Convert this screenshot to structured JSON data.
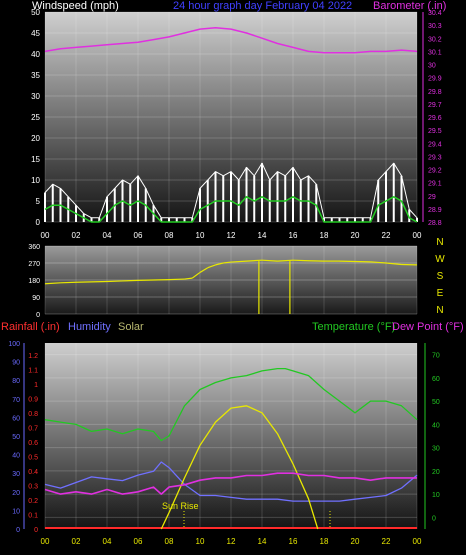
{
  "header": {
    "windspeed_title": "Windspeed (mph)",
    "graph_title": "24 hour graph day   February 04 2022",
    "barometer_title": "Barometer (.in)"
  },
  "colors": {
    "background": "#000000",
    "panel_top": "#c8c8c8",
    "panel_bottom": "#1a1a1a",
    "barometer": "#e030e0",
    "wind_peak": "#ffffff",
    "wind_avg": "#22cc22",
    "direction": "#e8e800",
    "rain": "#ff2a2a",
    "humidity": "#7070ff",
    "solar": "#e8e800",
    "temperature": "#22c822",
    "dewpoint": "#e030e0",
    "title_blue": "#4040ff",
    "left_axis": "#6a6aff",
    "right_axis": "#22c822"
  },
  "x_ticks": [
    "00",
    "02",
    "04",
    "06",
    "08",
    "10",
    "12",
    "14",
    "16",
    "18",
    "20",
    "22",
    "00"
  ],
  "direction_labels": [
    "N",
    "W",
    "S",
    "E",
    "N"
  ],
  "bottom_legend": {
    "rainfall": "Rainfall (.in)",
    "humidity": "Humidity",
    "solar": "Solar",
    "temperature": "Temperature (°F)",
    "dewpoint": "Dew Point (°F)"
  },
  "annotation": {
    "sunrise": "Sun Rise"
  },
  "chart_data": [
    {
      "type": "line",
      "title": "24 hour graph day   February 04 2022",
      "x_unit": "hour",
      "xlim": [
        0,
        24
      ],
      "x_tick_labels": [
        "00",
        "02",
        "04",
        "06",
        "08",
        "10",
        "12",
        "14",
        "16",
        "18",
        "20",
        "22",
        "00"
      ],
      "ylabel": "Windspeed (mph)",
      "ylim": [
        0,
        50
      ],
      "yticks": [
        0,
        5,
        10,
        15,
        20,
        25,
        30,
        35,
        40,
        45,
        50
      ],
      "y2label": "Barometer (.in)",
      "y2lim": [
        28.8,
        30.4
      ],
      "y2ticks": [
        "28.8",
        "28.9",
        "29",
        "29.1",
        "29.2",
        "29.3",
        "29.4",
        "29.5",
        "29.6",
        "29.7",
        "29.8",
        "29.9",
        "30",
        "30.1",
        "30.2",
        "30.3",
        "30.4"
      ],
      "grid": true,
      "series": [
        {
          "name": "Barometer (.in)",
          "axis": "y2",
          "x": [
            0,
            1,
            2,
            3,
            4,
            5,
            6,
            7,
            8,
            9,
            10,
            11,
            12,
            13,
            14,
            15,
            16,
            17,
            18,
            19,
            20,
            21,
            22,
            23,
            24
          ],
          "values": [
            30.1,
            30.12,
            30.13,
            30.14,
            30.15,
            30.16,
            30.17,
            30.19,
            30.21,
            30.24,
            30.27,
            30.28,
            30.27,
            30.24,
            30.2,
            30.16,
            30.13,
            30.1,
            30.09,
            30.09,
            30.09,
            30.1,
            30.1,
            30.11,
            30.1
          ]
        },
        {
          "name": "wind peak",
          "axis": "y",
          "x": [
            0,
            0.5,
            1,
            1.5,
            2,
            2.5,
            3,
            3.5,
            4,
            4.5,
            5,
            5.5,
            6,
            6.5,
            7,
            7.5,
            8,
            8.5,
            9,
            9.5,
            10,
            10.5,
            11,
            11.5,
            12,
            12.5,
            13,
            13.5,
            14,
            14.5,
            15,
            15.5,
            16,
            16.5,
            17,
            17.5,
            18,
            18.5,
            19,
            19.5,
            20,
            20.5,
            21,
            21.5,
            22,
            22.5,
            23,
            23.5,
            24
          ],
          "values": [
            7,
            9,
            8,
            6,
            4,
            2,
            1,
            1,
            6,
            8,
            10,
            9,
            11,
            8,
            4,
            1,
            1,
            1,
            1,
            1,
            8,
            10,
            12,
            11,
            12,
            10,
            13,
            11,
            14,
            10,
            12,
            11,
            13,
            10,
            11,
            9,
            1,
            1,
            1,
            1,
            1,
            1,
            1,
            10,
            12,
            14,
            11,
            3,
            1
          ]
        },
        {
          "name": "wind average",
          "axis": "y",
          "x": [
            0,
            0.5,
            1,
            1.5,
            2,
            2.5,
            3,
            3.5,
            4,
            4.5,
            5,
            5.5,
            6,
            6.5,
            7,
            7.5,
            8,
            8.5,
            9,
            9.5,
            10,
            10.5,
            11,
            11.5,
            12,
            12.5,
            13,
            13.5,
            14,
            14.5,
            15,
            15.5,
            16,
            16.5,
            17,
            17.5,
            18,
            18.5,
            19,
            19.5,
            20,
            20.5,
            21,
            21.5,
            22,
            22.5,
            23,
            23.5,
            24
          ],
          "values": [
            3,
            4,
            4,
            3,
            2,
            1,
            0,
            0,
            2,
            4,
            5,
            4,
            5,
            4,
            2,
            0,
            0,
            0,
            0,
            0,
            3,
            4,
            5,
            5,
            5,
            4,
            6,
            5,
            6,
            5,
            5,
            5,
            6,
            5,
            5,
            4,
            0,
            0,
            0,
            0,
            0,
            0,
            0,
            4,
            5,
            6,
            5,
            1,
            0
          ]
        }
      ]
    },
    {
      "type": "line",
      "ylabel": "Wind direction",
      "ylim": [
        0,
        360
      ],
      "yticks": [
        0,
        90,
        180,
        270,
        360
      ],
      "xlim": [
        0,
        24
      ],
      "grid": true,
      "series": [
        {
          "name": "wind direction",
          "x": [
            0,
            1,
            2,
            3,
            4,
            5,
            6,
            7,
            8,
            9,
            9.5,
            10,
            10.5,
            11,
            11.5,
            12,
            13,
            13.8,
            14,
            15,
            15.8,
            16,
            17,
            18,
            19,
            20,
            21,
            22,
            23,
            24
          ],
          "values": [
            160,
            165,
            168,
            170,
            172,
            175,
            178,
            180,
            182,
            185,
            190,
            220,
            245,
            260,
            270,
            275,
            280,
            0,
            285,
            280,
            0,
            285,
            282,
            280,
            280,
            278,
            276,
            270,
            262,
            260
          ]
        }
      ]
    },
    {
      "type": "line",
      "xlim": [
        0,
        24
      ],
      "x_tick_labels": [
        "00",
        "02",
        "04",
        "06",
        "08",
        "10",
        "12",
        "14",
        "16",
        "18",
        "20",
        "22",
        "00"
      ],
      "ylabel": "Rainfall (.in)",
      "ylim": [
        0,
        1.2
      ],
      "yticks": [
        "0",
        "0.1",
        "0.2",
        "0.3",
        "0.4",
        "0.5",
        "0.6",
        "0.7",
        "0.8",
        "0.9",
        "1",
        "1.1",
        "1.2"
      ],
      "y_humidity_ticks": [
        0,
        10,
        20,
        30,
        40,
        50,
        60,
        70,
        80,
        90,
        100
      ],
      "y2label": "Temperature (°F)",
      "y2lim": [
        -5,
        75
      ],
      "y2ticks": [
        0,
        10,
        20,
        30,
        40,
        50,
        60,
        70
      ],
      "grid": true,
      "series": [
        {
          "name": "Rainfall (.in)",
          "axis": "rain",
          "x": [
            0,
            24
          ],
          "values": [
            0,
            0
          ]
        },
        {
          "name": "Humidity",
          "axis": "humidity",
          "x": [
            0,
            1,
            2,
            3,
            4,
            5,
            6,
            7,
            7.5,
            8,
            9,
            10,
            11,
            12,
            13,
            14,
            15,
            16,
            17,
            18,
            19,
            20,
            21,
            22,
            23,
            24
          ],
          "values": [
            24,
            22,
            25,
            28,
            27,
            26,
            29,
            31,
            36,
            33,
            24,
            18,
            18,
            17,
            16,
            16,
            16,
            15,
            15,
            15,
            15,
            16,
            17,
            18,
            22,
            29
          ]
        },
        {
          "name": "Solar",
          "axis": "y2",
          "x": [
            7.5,
            8,
            9,
            10,
            11,
            12,
            13,
            14,
            15,
            16,
            17,
            17.6
          ],
          "values": [
            -5,
            2,
            17,
            31,
            41,
            47,
            48,
            45,
            36,
            23,
            8,
            -5
          ]
        },
        {
          "name": "Temperature (°F)",
          "axis": "y2",
          "x": [
            0,
            1,
            2,
            3,
            4,
            5,
            6,
            7,
            7.5,
            8,
            9,
            10,
            11,
            12,
            13,
            14,
            15,
            15.5,
            16,
            17,
            18,
            19,
            20,
            21,
            22,
            23,
            24
          ],
          "values": [
            42,
            41,
            40,
            37,
            38,
            36,
            38,
            37,
            33,
            35,
            48,
            55,
            58,
            60,
            61,
            63,
            64,
            64,
            63,
            61,
            55,
            50,
            45,
            50,
            50,
            48,
            42
          ]
        },
        {
          "name": "Dew Point (°F)",
          "axis": "y2",
          "x": [
            0,
            1,
            2,
            3,
            4,
            5,
            6,
            7,
            7.5,
            8,
            9,
            10,
            11,
            12,
            13,
            14,
            15,
            16,
            17,
            18,
            19,
            20,
            21,
            22,
            23,
            24
          ],
          "values": [
            12,
            10,
            11,
            10,
            12,
            10,
            11,
            13,
            10,
            13,
            14,
            16,
            17,
            17,
            18,
            18,
            19,
            19,
            18,
            18,
            17,
            17,
            16,
            17,
            17,
            17
          ]
        }
      ],
      "annotations": [
        {
          "text": "Sun Rise",
          "x": 7.5
        }
      ]
    }
  ]
}
